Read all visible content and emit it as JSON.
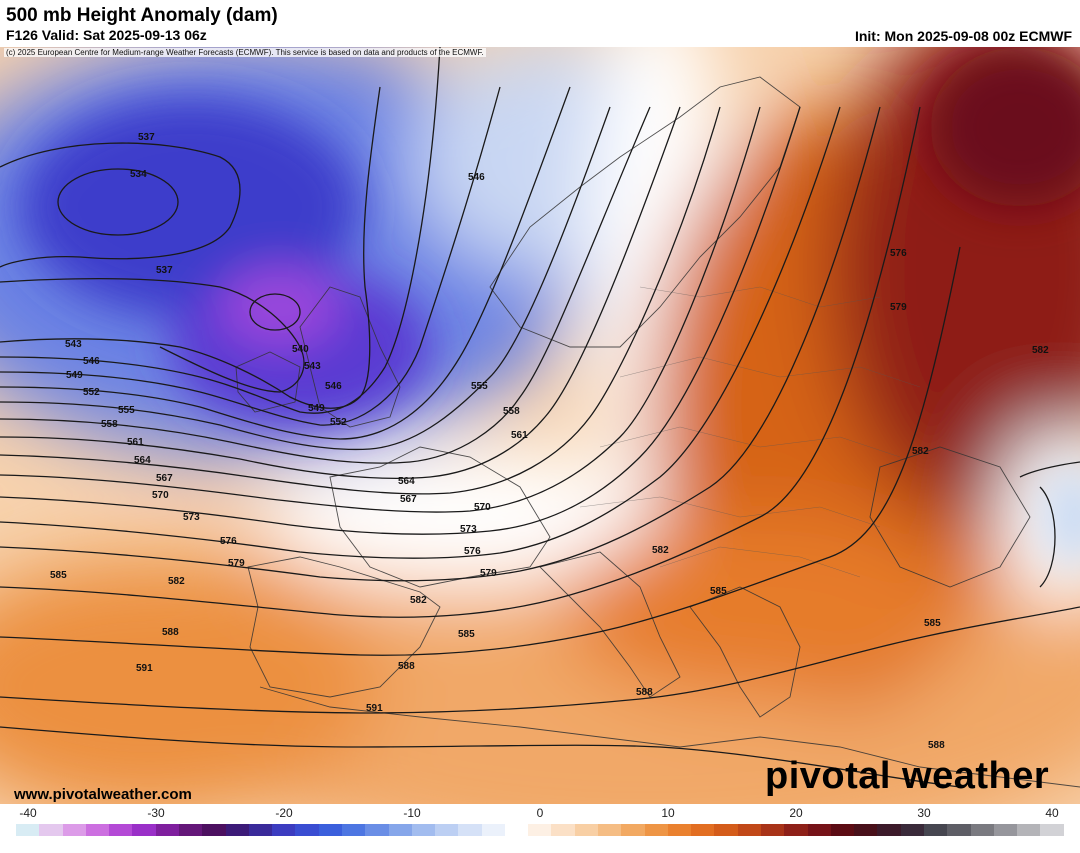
{
  "header": {
    "title": "500 mb Height Anomaly (dam)",
    "subtitle": "F126 Valid: Sat 2025-09-13 06z",
    "init": "Init: Mon 2025-09-08 00z ECMWF",
    "copyright": "(c) 2025 European Centre for Medium-range Weather Forecasts (ECMWF). This service is based on data and products of the ECMWF."
  },
  "map": {
    "region": "Europe / North Atlantic",
    "contour_labels": [
      "537",
      "534",
      "537",
      "540",
      "543",
      "546",
      "549",
      "552",
      "555",
      "558",
      "561",
      "564",
      "567",
      "570",
      "573",
      "576",
      "579",
      "582",
      "585",
      "588",
      "591",
      "543",
      "546",
      "549",
      "552",
      "555",
      "558",
      "561",
      "564",
      "567",
      "570",
      "573",
      "576",
      "579",
      "582",
      "585",
      "588",
      "546",
      "576",
      "579",
      "582",
      "582",
      "582",
      "585",
      "585",
      "588",
      "588",
      "591"
    ],
    "colors": {
      "negative_strong": "#7a2ad8",
      "negative_mid": "#3f4fd6",
      "neutral": "#ffffff",
      "positive_mid": "#e8762a",
      "positive_strong": "#7a0f18"
    }
  },
  "footer": {
    "site": "www.pivotalweather.com",
    "brand": "pivotal weather"
  },
  "colorbar": {
    "ticks": [
      "-40",
      "-30",
      "-20",
      "-10",
      "0",
      "10",
      "20",
      "30",
      "40"
    ],
    "colors": [
      "#d8ecf4",
      "#e4c8ee",
      "#dc9be8",
      "#cc6fe0",
      "#b44ad6",
      "#9a30c8",
      "#7f1f9e",
      "#641779",
      "#4c1060",
      "#3c1a78",
      "#3a2a9a",
      "#3c3cc0",
      "#3a4dd2",
      "#3b5fdc",
      "#4d76e2",
      "#6a8ee6",
      "#86a6ea",
      "#a2bcef",
      "#bccff3",
      "#d5e1f7",
      "#ebf1fb",
      "#ffffff",
      "#fdf0e4",
      "#fbe0c6",
      "#f8cfa4",
      "#f5bd84",
      "#f2a962",
      "#ee9545",
      "#ea812f",
      "#e26e22",
      "#d45c1a",
      "#c14818",
      "#a83318",
      "#8e2018",
      "#761318",
      "#5c0c14",
      "#48101a",
      "#3c1a2a",
      "#3a2a3a",
      "#464650",
      "#5e5e66",
      "#7a7a80",
      "#96969c",
      "#b4b4b8",
      "#d2d2d6"
    ]
  }
}
